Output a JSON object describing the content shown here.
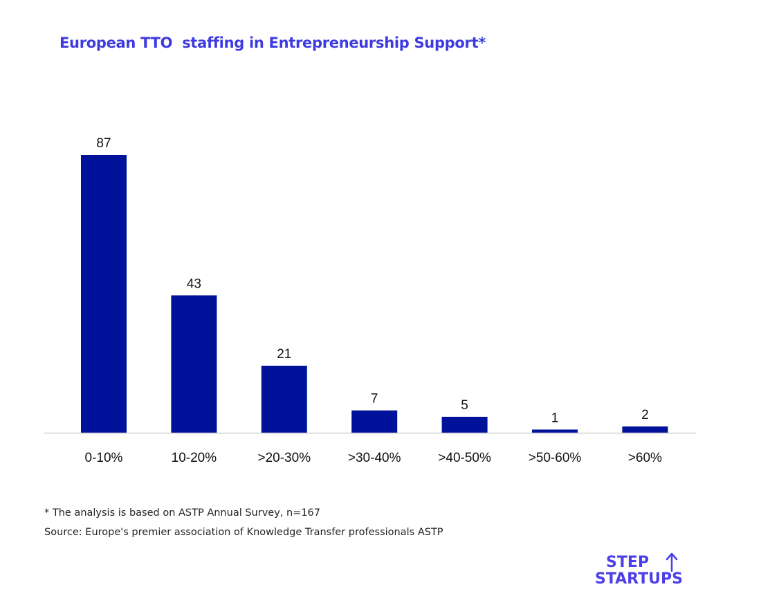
{
  "chart_data": {
    "type": "bar",
    "title": "European TTO  staffing in Entrepreneurship Support*",
    "xlabel": "",
    "ylabel": "",
    "categories": [
      "0-10%",
      "10-20%",
      ">20-30%",
      ">30-40%",
      ">40-50%",
      ">50-60%",
      ">60%"
    ],
    "values": [
      87,
      43,
      21,
      7,
      5,
      1,
      2
    ],
    "data_labels": [
      "87",
      "43",
      "21",
      "7",
      "5",
      "1",
      "2"
    ],
    "ylim": [
      0,
      87
    ],
    "grid": false,
    "legend": "none",
    "bar_color": "#00129a"
  },
  "colors": {
    "title": "#3d3ae0",
    "bar": "#00129a",
    "axis": "#cfcfcf",
    "logo": "#4b3fe8"
  },
  "footnotes": {
    "note": "* The analysis is based on ASTP Annual Survey, n=167",
    "source": "Source: Europe's premier association of Knowledge Transfer professionals ASTP"
  },
  "logo": {
    "line1": "STEP",
    "line2": "START",
    "line2_suffix": "UPS",
    "icon": "arrow-up-icon"
  }
}
